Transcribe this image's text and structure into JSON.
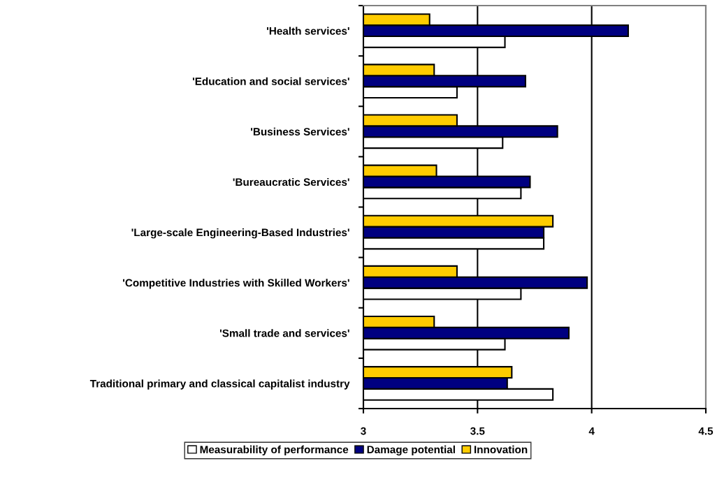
{
  "chart_data": {
    "type": "bar",
    "orientation": "horizontal",
    "categories": [
      "'Health services'",
      "'Education and social services'",
      "'Business Services'",
      "'Bureaucratic Services'",
      "'Large-scale Engineering-Based Industries'",
      "'Competitive Industries with Skilled Workers'",
      "'Small trade and services'",
      "Traditional primary and classical capitalist industry"
    ],
    "series": [
      {
        "name": "Measurability of performance",
        "color": "#ffffff",
        "values": [
          3.62,
          3.41,
          3.61,
          3.69,
          3.79,
          3.69,
          3.62,
          3.83
        ]
      },
      {
        "name": "Damage potential",
        "color": "#000080",
        "values": [
          4.16,
          3.71,
          3.85,
          3.73,
          3.79,
          3.98,
          3.9,
          3.63
        ]
      },
      {
        "name": "Innovation",
        "color": "#ffcc00",
        "values": [
          3.29,
          3.31,
          3.41,
          3.32,
          3.83,
          3.41,
          3.31,
          3.65
        ]
      }
    ],
    "xlim": [
      3,
      4.5
    ],
    "xticks": [
      3,
      3.5,
      4,
      4.5
    ],
    "grid": "x",
    "legend": "bottom"
  }
}
